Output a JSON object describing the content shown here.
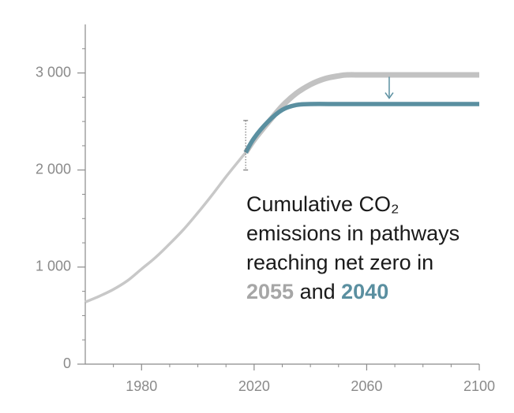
{
  "chart_data": {
    "type": "line",
    "title": "",
    "xlabel": "",
    "ylabel": "",
    "xlim": [
      1960,
      2100
    ],
    "ylim": [
      0,
      3500
    ],
    "x_ticks": [
      1980,
      2020,
      2060,
      2100
    ],
    "x_tick_labels": [
      "1980",
      "2020",
      "2060",
      "2100"
    ],
    "y_ticks": [
      0,
      1000,
      2000,
      3000
    ],
    "y_tick_labels": [
      "0",
      "1 000",
      "2 000",
      "3 000"
    ],
    "grid": false,
    "series": [
      {
        "name": "",
        "color": "#c8c8c8",
        "x": [
          1960,
          1965,
          1970,
          1975,
          1980,
          1985,
          1990,
          1995,
          2000,
          2005,
          2010,
          2015,
          2017
        ],
        "y": [
          640,
          700,
          770,
          860,
          980,
          1100,
          1240,
          1390,
          1560,
          1740,
          1930,
          2110,
          2180
        ]
      },
      {
        "name": "2055",
        "color": "#c2c2c2",
        "x": [
          2017,
          2020,
          2025,
          2030,
          2035,
          2040,
          2045,
          2050,
          2053,
          2060,
          2080,
          2100
        ],
        "y": [
          2180,
          2310,
          2490,
          2660,
          2790,
          2880,
          2940,
          2970,
          2980,
          2980,
          2980,
          2980
        ]
      },
      {
        "name": "2040",
        "color": "#5a8fa0",
        "x": [
          2017,
          2020,
          2025,
          2030,
          2035,
          2040,
          2050,
          2060,
          2080,
          2100
        ],
        "y": [
          2180,
          2330,
          2500,
          2620,
          2670,
          2680,
          2680,
          2680,
          2680,
          2680
        ]
      }
    ],
    "uncertainty_bar": {
      "x": 2017,
      "y_low": 2000,
      "y_high": 2510,
      "color": "#777777"
    },
    "arrow": {
      "x": 2068,
      "y_from": 2960,
      "y_to": 2740,
      "color": "#5a8fa0"
    },
    "annotation": {
      "lines": [
        "Cumulative CO₂",
        "emissions in pathways",
        "reaching net zero in"
      ],
      "year_a": "2055",
      "connector": " and ",
      "year_b": "2040",
      "year_a_color": "#a6a6a6",
      "year_b_color": "#5a8fa0"
    }
  }
}
